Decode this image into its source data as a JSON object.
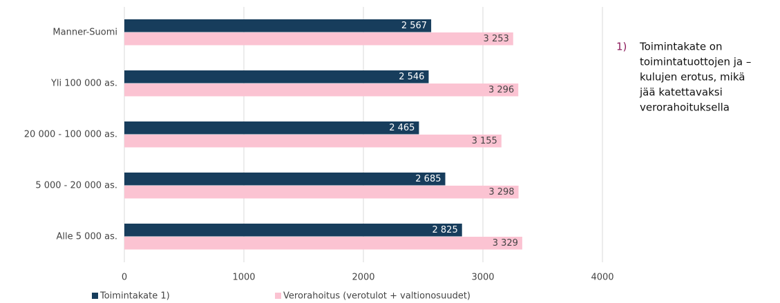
{
  "chart_data": {
    "type": "bar",
    "orientation": "horizontal",
    "categories": [
      "Manner-Suomi",
      "Yli 100 000 as.",
      "20 000 - 100 000 as.",
      "5 000 - 20 000 as.",
      "Alle 5 000 as."
    ],
    "series": [
      {
        "name": "Toimintakate 1)",
        "color": "#173d5c",
        "values": [
          2567,
          2546,
          2465,
          2685,
          2825
        ],
        "value_labels": [
          "2 567",
          "2 546",
          "2 465",
          "2 685",
          "2 825"
        ]
      },
      {
        "name": "Verorahoitus (verotulot + valtionosuudet)",
        "color": "#fbc3d2",
        "values": [
          3253,
          3296,
          3155,
          3298,
          3329
        ],
        "value_labels": [
          "3 253",
          "3 296",
          "3 155",
          "3 298",
          "3 329"
        ]
      }
    ],
    "xlim": [
      0,
      4000
    ],
    "xticks": [
      0,
      1000,
      2000,
      3000,
      4000
    ],
    "grid": true,
    "legend": "bottom",
    "note": {
      "marker": "1)",
      "lines": [
        "Toimintakate on",
        "toimintatuottojen ja –",
        "kulujen erotus, mikä",
        "jää katettavaksi",
        "verorahoituksella"
      ]
    }
  }
}
